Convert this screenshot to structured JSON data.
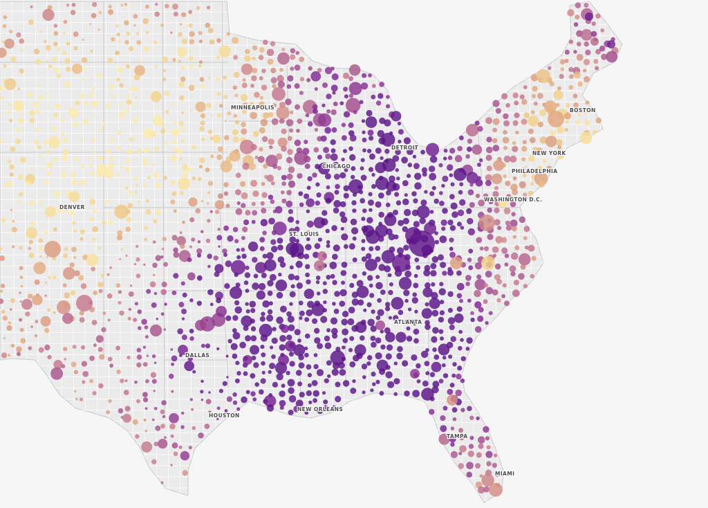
{
  "map": {
    "title": "",
    "background": "#f6f6f7",
    "land_fill": "#ebebec",
    "county_line_color": "#ffffff",
    "state_line_color": "#c9c9cc",
    "color_scale": [
      "#fbeaa6",
      "#f2cf87",
      "#dfa27e",
      "#c5778d",
      "#a04a8e",
      "#7a2395",
      "#5a1389"
    ],
    "cities": [
      {
        "id": "minneapolis",
        "name": "MINNEAPOLIS"
      },
      {
        "id": "boston",
        "name": "BOSTON"
      },
      {
        "id": "detroit",
        "name": "DETROIT"
      },
      {
        "id": "new-york",
        "name": "NEW YORK"
      },
      {
        "id": "chicago",
        "name": "CHICAGO"
      },
      {
        "id": "philadelphia",
        "name": "PHILADELPHIA"
      },
      {
        "id": "denver",
        "name": "DENVER"
      },
      {
        "id": "washington-dc",
        "name": "WASHINGTON D.C."
      },
      {
        "id": "st-louis",
        "name": "ST. LOUIS"
      },
      {
        "id": "atlanta",
        "name": "ATLANTA"
      },
      {
        "id": "dallas",
        "name": "DALLAS"
      },
      {
        "id": "houston",
        "name": "HOUSTON"
      },
      {
        "id": "new-orleans",
        "name": "NEW ORLEANS"
      },
      {
        "id": "tampa",
        "name": "TAMPA"
      },
      {
        "id": "miami",
        "name": "MIAMI"
      }
    ]
  }
}
